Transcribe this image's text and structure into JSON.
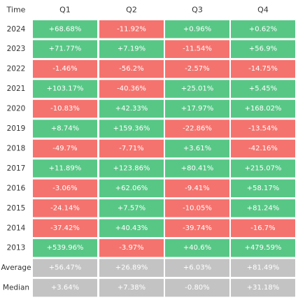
{
  "chart_data": {
    "type": "heatmap",
    "columns": [
      "Time",
      "Q1",
      "Q2",
      "Q3",
      "Q4"
    ],
    "rows": [
      {
        "label": "2024",
        "kind": "year",
        "cells": [
          {
            "text": "+68.68%",
            "value": 68.68
          },
          {
            "text": "-11.92%",
            "value": -11.92
          },
          {
            "text": "+0.96%",
            "value": 0.96
          },
          {
            "text": "+0.62%",
            "value": 0.62
          }
        ]
      },
      {
        "label": "2023",
        "kind": "year",
        "cells": [
          {
            "text": "+71.77%",
            "value": 71.77
          },
          {
            "text": "+7.19%",
            "value": 7.19
          },
          {
            "text": "-11.54%",
            "value": -11.54
          },
          {
            "text": "+56.9%",
            "value": 56.9
          }
        ]
      },
      {
        "label": "2022",
        "kind": "year",
        "cells": [
          {
            "text": "-1.46%",
            "value": -1.46
          },
          {
            "text": "-56.2%",
            "value": -56.2
          },
          {
            "text": "-2.57%",
            "value": -2.57
          },
          {
            "text": "-14.75%",
            "value": -14.75
          }
        ]
      },
      {
        "label": "2021",
        "kind": "year",
        "cells": [
          {
            "text": "+103.17%",
            "value": 103.17
          },
          {
            "text": "-40.36%",
            "value": -40.36
          },
          {
            "text": "+25.01%",
            "value": 25.01
          },
          {
            "text": "+5.45%",
            "value": 5.45
          }
        ]
      },
      {
        "label": "2020",
        "kind": "year",
        "cells": [
          {
            "text": "-10.83%",
            "value": -10.83
          },
          {
            "text": "+42.33%",
            "value": 42.33
          },
          {
            "text": "+17.97%",
            "value": 17.97
          },
          {
            "text": "+168.02%",
            "value": 168.02
          }
        ]
      },
      {
        "label": "2019",
        "kind": "year",
        "cells": [
          {
            "text": "+8.74%",
            "value": 8.74
          },
          {
            "text": "+159.36%",
            "value": 159.36
          },
          {
            "text": "-22.86%",
            "value": -22.86
          },
          {
            "text": "-13.54%",
            "value": -13.54
          }
        ]
      },
      {
        "label": "2018",
        "kind": "year",
        "cells": [
          {
            "text": "-49.7%",
            "value": -49.7
          },
          {
            "text": "-7.71%",
            "value": -7.71
          },
          {
            "text": "+3.61%",
            "value": 3.61
          },
          {
            "text": "-42.16%",
            "value": -42.16
          }
        ]
      },
      {
        "label": "2017",
        "kind": "year",
        "cells": [
          {
            "text": "+11.89%",
            "value": 11.89
          },
          {
            "text": "+123.86%",
            "value": 123.86
          },
          {
            "text": "+80.41%",
            "value": 80.41
          },
          {
            "text": "+215.07%",
            "value": 215.07
          }
        ]
      },
      {
        "label": "2016",
        "kind": "year",
        "cells": [
          {
            "text": "-3.06%",
            "value": -3.06
          },
          {
            "text": "+62.06%",
            "value": 62.06
          },
          {
            "text": "-9.41%",
            "value": -9.41
          },
          {
            "text": "+58.17%",
            "value": 58.17
          }
        ]
      },
      {
        "label": "2015",
        "kind": "year",
        "cells": [
          {
            "text": "-24.14%",
            "value": -24.14
          },
          {
            "text": "+7.57%",
            "value": 7.57
          },
          {
            "text": "-10.05%",
            "value": -10.05
          },
          {
            "text": "+81.24%",
            "value": 81.24
          }
        ]
      },
      {
        "label": "2014",
        "kind": "year",
        "cells": [
          {
            "text": "-37.42%",
            "value": -37.42
          },
          {
            "text": "+40.43%",
            "value": 40.43
          },
          {
            "text": "-39.74%",
            "value": -39.74
          },
          {
            "text": "-16.7%",
            "value": -16.7
          }
        ]
      },
      {
        "label": "2013",
        "kind": "year",
        "cells": [
          {
            "text": "+539.96%",
            "value": 539.96
          },
          {
            "text": "-3.97%",
            "value": -3.97
          },
          {
            "text": "+40.6%",
            "value": 40.6
          },
          {
            "text": "+479.59%",
            "value": 479.59
          }
        ]
      },
      {
        "label": "Average",
        "kind": "summary",
        "cells": [
          {
            "text": "+56.47%",
            "value": 56.47
          },
          {
            "text": "+26.89%",
            "value": 26.89
          },
          {
            "text": "+6.03%",
            "value": 6.03
          },
          {
            "text": "+81.49%",
            "value": 81.49
          }
        ]
      },
      {
        "label": "Median",
        "kind": "summary",
        "cells": [
          {
            "text": "+3.64%",
            "value": 3.64
          },
          {
            "text": "+7.38%",
            "value": 7.38
          },
          {
            "text": "-0.80%",
            "value": -0.8
          },
          {
            "text": "+31.18%",
            "value": 31.18
          }
        ]
      }
    ],
    "colors": {
      "positive": "#58c786",
      "negative": "#f4736e",
      "summary": "#c3c3c3",
      "cell_text": "#ffffff",
      "header_text": "#333333",
      "background": "#ffffff"
    }
  }
}
